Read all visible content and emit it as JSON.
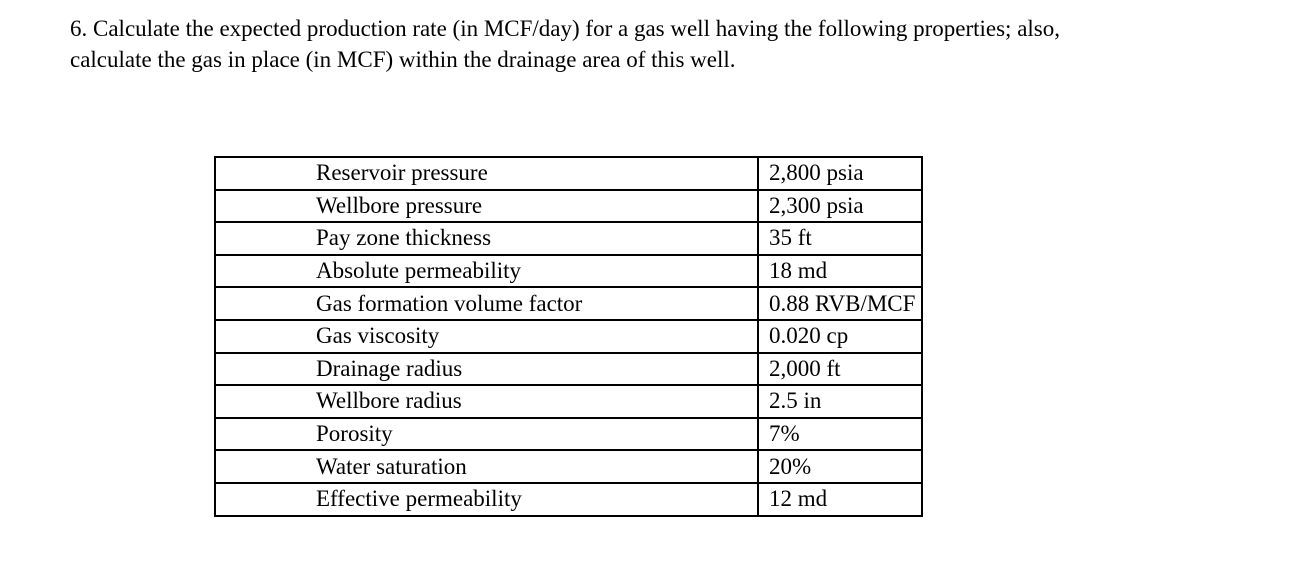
{
  "question": {
    "line1": "6. Calculate the expected production rate (in MCF/day) for a gas well having the following properties; also,",
    "line2": "calculate the gas in place (in MCF) within the drainage area of this well."
  },
  "table": {
    "rows": [
      {
        "property": "Reservoir pressure",
        "value": "2,800 psia"
      },
      {
        "property": "Wellbore pressure",
        "value": "2,300 psia"
      },
      {
        "property": "Pay zone thickness",
        "value": "35 ft"
      },
      {
        "property": "Absolute permeability",
        "value": "18 md"
      },
      {
        "property": "Gas formation volume factor",
        "value": "0.88 RVB/MCF"
      },
      {
        "property": "Gas viscosity",
        "value": "0.020 cp"
      },
      {
        "property": "Drainage radius",
        "value": "2,000 ft"
      },
      {
        "property": "Wellbore radius",
        "value": "2.5 in"
      },
      {
        "property": "Porosity",
        "value": "7%"
      },
      {
        "property": "Water saturation",
        "value": "20%"
      },
      {
        "property": "Effective permeability",
        "value": "12 md"
      }
    ]
  }
}
